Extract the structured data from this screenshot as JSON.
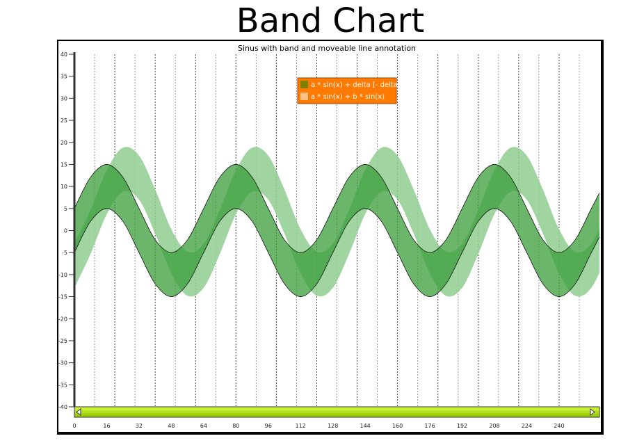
{
  "title": "Band Chart",
  "chart_data": {
    "type": "area",
    "subtitle": "Sinus with band and moveable line annotation",
    "xlim": [
      0,
      260
    ],
    "ylim": [
      -40,
      40
    ],
    "x_ticks": [
      0,
      16,
      32,
      48,
      64,
      80,
      96,
      112,
      128,
      144,
      160,
      176,
      192,
      208,
      224,
      240
    ],
    "y_ticks": [
      -40,
      -35,
      -30,
      -25,
      -20,
      -15,
      -10,
      -5,
      0,
      5,
      10,
      15,
      20,
      25,
      30,
      35,
      40
    ],
    "grid": "vertical dashed",
    "legend_placement": "top-center",
    "legend_bg": "#ff7a00",
    "x": [
      0,
      8,
      16,
      24,
      32,
      40,
      48,
      56,
      64,
      72,
      80,
      88,
      96,
      104,
      112,
      120,
      128,
      136,
      144,
      152,
      160,
      168,
      176,
      184,
      192,
      200,
      208,
      216,
      224,
      232,
      240,
      248,
      256,
      264
    ],
    "series": [
      {
        "name": "a * sin(x) + delta [- delta]",
        "color": "#3a9e3a",
        "swatch": "#7f7f00",
        "upper": [
          5,
          12.1,
          15,
          12.1,
          5,
          -2.1,
          -5,
          -2.1,
          5,
          12.1,
          15,
          12.1,
          5,
          -2.1,
          -5,
          -2.1,
          5,
          12.1,
          15,
          12.1,
          5,
          -2.1,
          -5,
          -2.1,
          5,
          12.1,
          15,
          12.1,
          5,
          -2.1,
          -5,
          -2.1,
          5,
          12.1
        ],
        "lower": [
          -5,
          2.1,
          5,
          2.1,
          -5,
          -12.1,
          -15,
          -12.1,
          -5,
          2.1,
          5,
          2.1,
          -5,
          -12.1,
          -15,
          -12.1,
          -5,
          2.1,
          5,
          2.1,
          -5,
          -12.1,
          -15,
          -12.1,
          -5,
          2.1,
          5,
          2.1,
          -5,
          -12.1,
          -15,
          -12.1,
          -5,
          2.1
        ]
      },
      {
        "name": "a * sin(x) + b * sin(x)",
        "color": "#8fcc8f",
        "swatch": "#ffc080",
        "upper": [
          -3,
          4.7,
          13.7,
          18.8,
          17,
          9.3,
          0.3,
          -4.8,
          -3,
          4.7,
          13.7,
          18.8,
          17,
          9.3,
          0.3,
          -4.8,
          -3,
          4.7,
          13.7,
          18.8,
          17,
          9.3,
          0.3,
          -4.8,
          -3,
          4.7,
          13.7,
          18.8,
          17,
          9.3,
          0.3,
          -4.8,
          -3,
          4.7
        ],
        "lower": [
          -13,
          -5.3,
          3.7,
          8.8,
          7,
          -0.7,
          -9.7,
          -14.8,
          -13,
          -5.3,
          3.7,
          8.8,
          7,
          -0.7,
          -9.7,
          -14.8,
          -13,
          -5.3,
          3.7,
          8.8,
          7,
          -0.7,
          -9.7,
          -14.8,
          -13,
          -5.3,
          3.7,
          8.8,
          7,
          -0.7,
          -9.7,
          -14.8,
          -13,
          -5.3
        ]
      }
    ]
  },
  "scrollbar": {
    "color": "#a8e000"
  }
}
